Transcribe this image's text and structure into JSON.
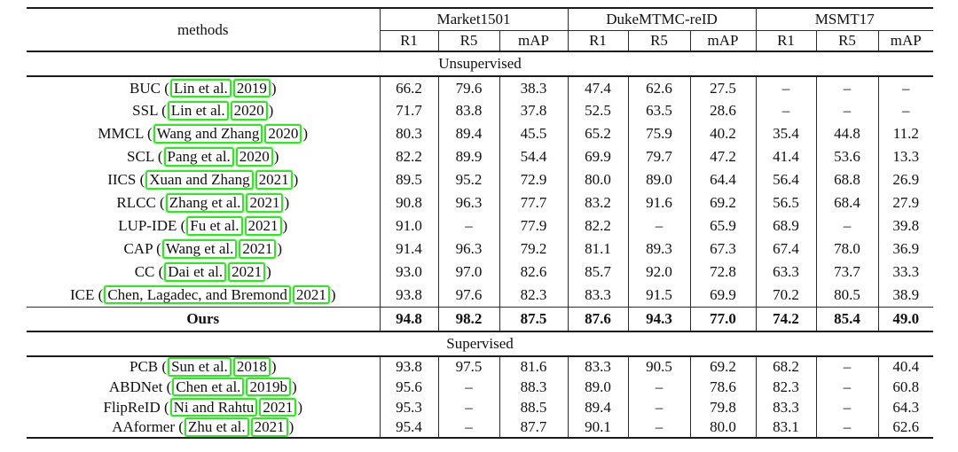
{
  "annotation": {
    "citation_box_color": "#3fdd33"
  },
  "table": {
    "methods_header": "methods",
    "citation_format": {
      "open": " (",
      "close": ")"
    },
    "groups": [
      {
        "label": "Market1501",
        "cols": [
          "R1",
          "R5",
          "mAP"
        ]
      },
      {
        "label": "DukeMTMC-reID",
        "cols": [
          "R1",
          "R5",
          "mAP"
        ]
      },
      {
        "label": "MSMT17",
        "cols": [
          "R1",
          "R5",
          "mAP"
        ]
      }
    ],
    "sections": [
      {
        "label": "Unsupervised",
        "compact": false,
        "rows": [
          {
            "method": "BUC",
            "cite_author": "Lin et al.",
            "cite_year": "2019",
            "values": [
              "66.2",
              "79.6",
              "38.3",
              "47.4",
              "62.6",
              "27.5",
              "–",
              "–",
              "–"
            ]
          },
          {
            "method": "SSL",
            "cite_author": "Lin et al.",
            "cite_year": "2020",
            "values": [
              "71.7",
              "83.8",
              "37.8",
              "52.5",
              "63.5",
              "28.6",
              "–",
              "–",
              "–"
            ]
          },
          {
            "method": "MMCL",
            "cite_author": "Wang and Zhang",
            "cite_year": "2020",
            "values": [
              "80.3",
              "89.4",
              "45.5",
              "65.2",
              "75.9",
              "40.2",
              "35.4",
              "44.8",
              "11.2"
            ]
          },
          {
            "method": "SCL",
            "cite_author": "Pang et al.",
            "cite_year": "2020",
            "values": [
              "82.2",
              "89.9",
              "54.4",
              "69.9",
              "79.7",
              "47.2",
              "41.4",
              "53.6",
              "13.3"
            ]
          },
          {
            "method": "IICS",
            "cite_author": "Xuan and Zhang",
            "cite_year": "2021",
            "values": [
              "89.5",
              "95.2",
              "72.9",
              "80.0",
              "89.0",
              "64.4",
              "56.4",
              "68.8",
              "26.9"
            ]
          },
          {
            "method": "RLCC",
            "cite_author": "Zhang et al.",
            "cite_year": "2021",
            "values": [
              "90.8",
              "96.3",
              "77.7",
              "83.2",
              "91.6",
              "69.2",
              "56.5",
              "68.4",
              "27.9"
            ]
          },
          {
            "method": "LUP-IDE",
            "cite_author": "Fu et al.",
            "cite_year": "2021",
            "values": [
              "91.0",
              "–",
              "77.9",
              "82.2",
              "–",
              "65.9",
              "68.9",
              "–",
              "39.8"
            ]
          },
          {
            "method": "CAP",
            "cite_author": "Wang et al.",
            "cite_year": "2021",
            "values": [
              "91.4",
              "96.3",
              "79.2",
              "81.1",
              "89.3",
              "67.3",
              "67.4",
              "78.0",
              "36.9"
            ]
          },
          {
            "method": "CC",
            "cite_author": "Dai et al.",
            "cite_year": "2021",
            "values": [
              "93.0",
              "97.0",
              "82.6",
              "85.7",
              "92.0",
              "72.8",
              "63.3",
              "73.7",
              "33.3"
            ]
          },
          {
            "method": "ICE",
            "cite_author": "Chen, Lagadec, and Bremond",
            "cite_year": "2021",
            "values": [
              "93.8",
              "97.6",
              "82.3",
              "83.3",
              "91.5",
              "69.9",
              "70.2",
              "80.5",
              "38.9"
            ]
          },
          {
            "method": "Ours",
            "bold": true,
            "values": [
              "94.8",
              "98.2",
              "87.5",
              "87.6",
              "94.3",
              "77.0",
              "74.2",
              "85.4",
              "49.0"
            ]
          }
        ]
      },
      {
        "label": "Supervised",
        "compact": true,
        "rows": [
          {
            "method": "PCB",
            "cite_author": "Sun et al.",
            "cite_year": "2018",
            "values": [
              "93.8",
              "97.5",
              "81.6",
              "83.3",
              "90.5",
              "69.2",
              "68.2",
              "–",
              "40.4"
            ]
          },
          {
            "method": "ABDNet",
            "cite_author": "Chen et al.",
            "cite_year": "2019b",
            "values": [
              "95.6",
              "–",
              "88.3",
              "89.0",
              "–",
              "78.6",
              "82.3",
              "–",
              "60.8"
            ]
          },
          {
            "method": "FlipReID",
            "cite_author": "Ni and Rahtu",
            "cite_year": "2021",
            "values": [
              "95.3",
              "–",
              "88.5",
              "89.4",
              "–",
              "79.8",
              "83.3",
              "–",
              "64.3"
            ]
          },
          {
            "method": "AAformer",
            "cite_author": "Zhu et al.",
            "cite_year": "2021",
            "values": [
              "95.4",
              "–",
              "87.7",
              "90.1",
              "–",
              "80.0",
              "83.1",
              "–",
              "62.6"
            ]
          }
        ]
      }
    ]
  }
}
